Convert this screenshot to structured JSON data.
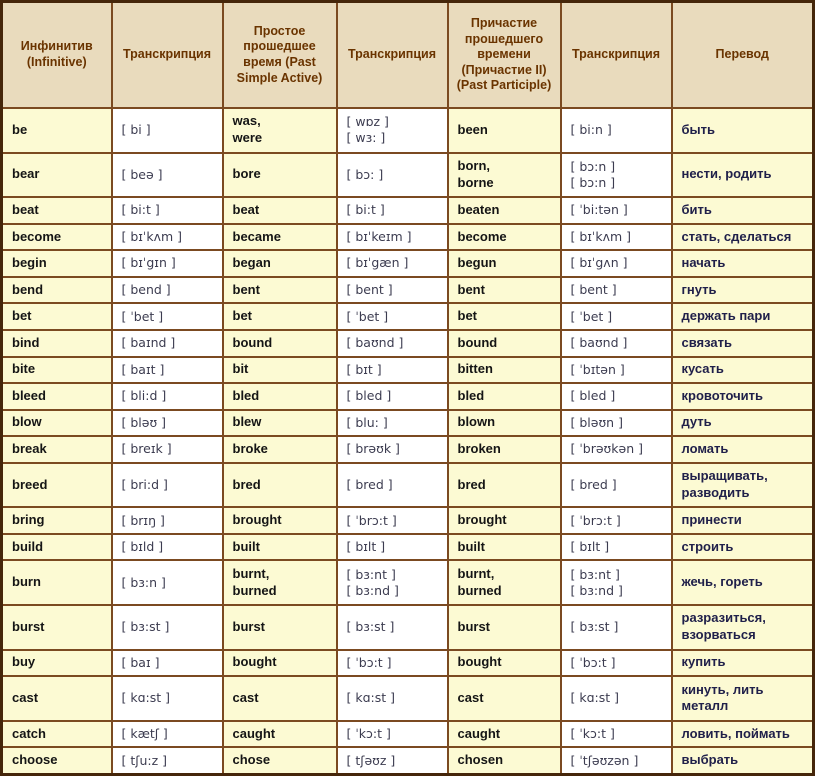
{
  "table": {
    "colors": {
      "grid_border": "#7b4a21",
      "outer_border": "#45260a",
      "header_bg": "#e9dbbd",
      "header_text": "#6a3400",
      "verb_cell_bg": "#fcfad3",
      "transcription_cell_bg": "#ffffff",
      "verb_text": "#151515",
      "transcription_text": "#3c3c50",
      "translation_text": "#20204a"
    },
    "header": {
      "columns": [
        "Инфинитив (Infinitive)",
        "Транскрипция",
        "Простое прошедшее время (Past Simple Active)",
        "Транскрипция",
        "Причастие прошедшего времени (Причастие II) (Past Participle)",
        "Транскрипция",
        "Перевод"
      ]
    },
    "rows": [
      {
        "infinitive": [
          "be"
        ],
        "tr1": [
          "[ bi ]"
        ],
        "past": [
          "was,",
          "were"
        ],
        "tr2": [
          "[ wɒz ]",
          "[ wɜ: ]"
        ],
        "participle": [
          "been"
        ],
        "tr3": [
          "[ bi:n ]"
        ],
        "translation": "быть"
      },
      {
        "infinitive": [
          "bear"
        ],
        "tr1": [
          "[ beə ]"
        ],
        "past": [
          "bore"
        ],
        "tr2": [
          "[ bɔ: ]"
        ],
        "participle": [
          "born,",
          "borne"
        ],
        "tr3": [
          "[ bɔ:n ]",
          "[ bɔ:n ]"
        ],
        "translation": "нести, родить"
      },
      {
        "infinitive": [
          "beat"
        ],
        "tr1": [
          "[ bi:t ]"
        ],
        "past": [
          "beat"
        ],
        "tr2": [
          "[ bi:t ]"
        ],
        "participle": [
          "beaten"
        ],
        "tr3": [
          "[ ˈbi:tən ]"
        ],
        "translation": "бить"
      },
      {
        "infinitive": [
          "become"
        ],
        "tr1": [
          "[ bɪˈkʌm ]"
        ],
        "past": [
          "became"
        ],
        "tr2": [
          "[ bɪˈkeɪm ]"
        ],
        "participle": [
          "become"
        ],
        "tr3": [
          "[ bɪˈkʌm ]"
        ],
        "translation": "стать, сделаться"
      },
      {
        "infinitive": [
          "begin"
        ],
        "tr1": [
          "[ bɪˈgɪn ]"
        ],
        "past": [
          "began"
        ],
        "tr2": [
          "[ bɪˈgæn ]"
        ],
        "participle": [
          "begun"
        ],
        "tr3": [
          "[ bɪˈgʌn ]"
        ],
        "translation": "начать"
      },
      {
        "infinitive": [
          "bend"
        ],
        "tr1": [
          "[ bend ]"
        ],
        "past": [
          "bent"
        ],
        "tr2": [
          "[ bent ]"
        ],
        "participle": [
          "bent"
        ],
        "tr3": [
          "[ bent ]"
        ],
        "translation": "гнуть"
      },
      {
        "infinitive": [
          "bet"
        ],
        "tr1": [
          "[ ˈbet ]"
        ],
        "past": [
          "bet"
        ],
        "tr2": [
          "[ ˈbet ]"
        ],
        "participle": [
          "bet"
        ],
        "tr3": [
          "[ ˈbet ]"
        ],
        "translation": "держать пари"
      },
      {
        "infinitive": [
          "bind"
        ],
        "tr1": [
          "[ baɪnd ]"
        ],
        "past": [
          "bound"
        ],
        "tr2": [
          "[ baʊnd ]"
        ],
        "participle": [
          "bound"
        ],
        "tr3": [
          "[ baʊnd ]"
        ],
        "translation": "связать"
      },
      {
        "infinitive": [
          "bite"
        ],
        "tr1": [
          "[ baɪt ]"
        ],
        "past": [
          "bit"
        ],
        "tr2": [
          "[ bɪt ]"
        ],
        "participle": [
          "bitten"
        ],
        "tr3": [
          "[ ˈbɪtən ]"
        ],
        "translation": "кусать"
      },
      {
        "infinitive": [
          "bleed"
        ],
        "tr1": [
          "[ bli:d ]"
        ],
        "past": [
          "bled"
        ],
        "tr2": [
          "[ bled ]"
        ],
        "participle": [
          "bled"
        ],
        "tr3": [
          "[ bled ]"
        ],
        "translation": "кровоточить"
      },
      {
        "infinitive": [
          "blow"
        ],
        "tr1": [
          "[ bləʊ ]"
        ],
        "past": [
          "blew"
        ],
        "tr2": [
          "[ blu: ]"
        ],
        "participle": [
          "blown"
        ],
        "tr3": [
          "[ bləʊn ]"
        ],
        "translation": "дуть"
      },
      {
        "infinitive": [
          "break"
        ],
        "tr1": [
          "[ breɪk ]"
        ],
        "past": [
          "broke"
        ],
        "tr2": [
          "[ brəʊk ]"
        ],
        "participle": [
          "broken"
        ],
        "tr3": [
          "[ ˈbrəʊkən ]"
        ],
        "translation": "ломать"
      },
      {
        "infinitive": [
          "breed"
        ],
        "tr1": [
          "[ bri:d ]"
        ],
        "past": [
          "bred"
        ],
        "tr2": [
          "[ bred ]"
        ],
        "participle": [
          "bred"
        ],
        "tr3": [
          "[ bred ]"
        ],
        "translation": "выращивать, разводить"
      },
      {
        "infinitive": [
          "bring"
        ],
        "tr1": [
          "[ brɪŋ ]"
        ],
        "past": [
          "brought"
        ],
        "tr2": [
          "[ ˈbrɔ:t ]"
        ],
        "participle": [
          "brought"
        ],
        "tr3": [
          "[ ˈbrɔ:t ]"
        ],
        "translation": "принести"
      },
      {
        "infinitive": [
          "build"
        ],
        "tr1": [
          "[ bɪld ]"
        ],
        "past": [
          "built"
        ],
        "tr2": [
          "[ bɪlt ]"
        ],
        "participle": [
          "built"
        ],
        "tr3": [
          "[ bɪlt ]"
        ],
        "translation": "строить"
      },
      {
        "infinitive": [
          "burn"
        ],
        "tr1": [
          "[ bɜ:n ]"
        ],
        "past": [
          "burnt,",
          "burned"
        ],
        "tr2": [
          "[ bɜ:nt ]",
          "[ bɜ:nd ]"
        ],
        "participle": [
          "burnt,",
          "burned"
        ],
        "tr3": [
          "[ bɜ:nt ]",
          "[ bɜ:nd ]"
        ],
        "translation": "жечь, гореть"
      },
      {
        "infinitive": [
          "burst"
        ],
        "tr1": [
          "[ bɜ:st ]"
        ],
        "past": [
          "burst"
        ],
        "tr2": [
          "[ bɜ:st ]"
        ],
        "participle": [
          "burst"
        ],
        "tr3": [
          "[ bɜ:st ]"
        ],
        "translation": "разразиться, взорваться"
      },
      {
        "infinitive": [
          "buy"
        ],
        "tr1": [
          "[ baɪ ]"
        ],
        "past": [
          "bought"
        ],
        "tr2": [
          "[ ˈbɔ:t ]"
        ],
        "participle": [
          "bought"
        ],
        "tr3": [
          "[ ˈbɔ:t ]"
        ],
        "translation": "купить"
      },
      {
        "infinitive": [
          "cast"
        ],
        "tr1": [
          "[ kɑ:st ]"
        ],
        "past": [
          "cast"
        ],
        "tr2": [
          "[ kɑ:st ]"
        ],
        "participle": [
          "cast"
        ],
        "tr3": [
          "[ kɑ:st ]"
        ],
        "translation": "кинуть, лить металл"
      },
      {
        "infinitive": [
          "catch"
        ],
        "tr1": [
          "[ kætʃ ]"
        ],
        "past": [
          "caught"
        ],
        "tr2": [
          "[ ˈkɔ:t ]"
        ],
        "participle": [
          "caught"
        ],
        "tr3": [
          "[ ˈkɔ:t ]"
        ],
        "translation": "ловить, поймать"
      },
      {
        "infinitive": [
          "choose"
        ],
        "tr1": [
          "[ tʃu:z ]"
        ],
        "past": [
          "chose"
        ],
        "tr2": [
          "[ tʃəʊz ]"
        ],
        "participle": [
          "chosen"
        ],
        "tr3": [
          "[ ˈtʃəʊzən ]"
        ],
        "translation": "выбрать"
      }
    ]
  }
}
